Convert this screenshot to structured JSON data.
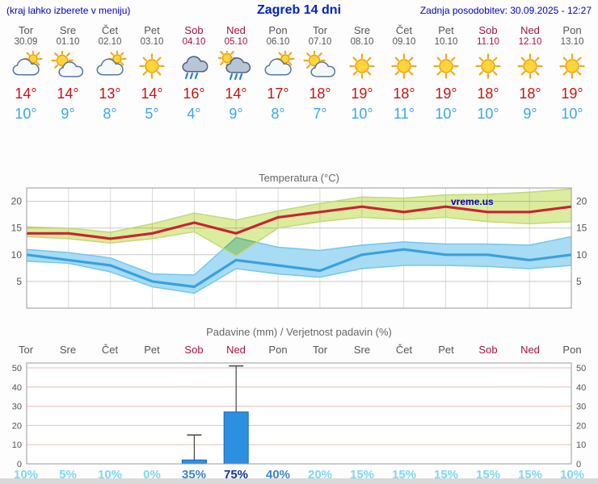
{
  "header": {
    "note": "(kraj lahko izberete v meniju)",
    "title": "Zagreb 14 dni",
    "updated": "Zadnja posodobitev: 30.09.2025 - 12:27"
  },
  "watermark": "vreme.us",
  "colors": {
    "link_blue": "#0000cc",
    "title_blue": "#0022cc",
    "watermark_blue": "#0000bb",
    "weekday": "#555555",
    "weekend": "#a8123e",
    "tmax": "#cc1111",
    "tmin": "#3aa5f0",
    "prob_low": "#7dd8f0",
    "prob_mid": "#3d85c8",
    "prob_high": "#10339e",
    "bar": "#2d8fe0",
    "bar_edge": "#1668b8"
  },
  "days": [
    {
      "name": "Tor",
      "date": "30.09",
      "weekend": false,
      "icon": "mostly-cloudy",
      "tmax": "14°",
      "tmin": "10°",
      "prob": "10%"
    },
    {
      "name": "Sre",
      "date": "01.10",
      "weekend": false,
      "icon": "partly-cloudy",
      "tmax": "14°",
      "tmin": "9°",
      "prob": "5%"
    },
    {
      "name": "Čet",
      "date": "02.10",
      "weekend": false,
      "icon": "mostly-cloudy",
      "tmax": "13°",
      "tmin": "8°",
      "prob": "10%"
    },
    {
      "name": "Pet",
      "date": "03.10",
      "weekend": false,
      "icon": "sunny",
      "tmax": "14°",
      "tmin": "5°",
      "prob": "0%"
    },
    {
      "name": "Sob",
      "date": "04.10",
      "weekend": true,
      "icon": "rain",
      "tmax": "16°",
      "tmin": "4°",
      "prob": "35%"
    },
    {
      "name": "Ned",
      "date": "05.10",
      "weekend": true,
      "icon": "rain-sun",
      "tmax": "14°",
      "tmin": "9°",
      "prob": "75%"
    },
    {
      "name": "Pon",
      "date": "06.10",
      "weekend": false,
      "icon": "mostly-cloudy",
      "tmax": "17°",
      "tmin": "8°",
      "prob": "40%"
    },
    {
      "name": "Tor",
      "date": "07.10",
      "weekend": false,
      "icon": "partly-cloudy",
      "tmax": "18°",
      "tmin": "7°",
      "prob": "20%"
    },
    {
      "name": "Sre",
      "date": "08.10",
      "weekend": false,
      "icon": "sunny",
      "tmax": "19°",
      "tmin": "10°",
      "prob": "15%"
    },
    {
      "name": "Čet",
      "date": "09.10",
      "weekend": false,
      "icon": "sunny",
      "tmax": "18°",
      "tmin": "11°",
      "prob": "15%"
    },
    {
      "name": "Pet",
      "date": "10.10",
      "weekend": false,
      "icon": "sunny",
      "tmax": "19°",
      "tmin": "10°",
      "prob": "15%"
    },
    {
      "name": "Sob",
      "date": "11.10",
      "weekend": true,
      "icon": "sunny",
      "tmax": "18°",
      "tmin": "10°",
      "prob": "15%"
    },
    {
      "name": "Ned",
      "date": "12.10",
      "weekend": true,
      "icon": "sunny",
      "tmax": "18°",
      "tmin": "9°",
      "prob": "15%"
    },
    {
      "name": "Pon",
      "date": "13.10",
      "weekend": false,
      "icon": "sunny",
      "tmax": "19°",
      "tmin": "10°",
      "prob": "10%"
    }
  ],
  "chart_data": [
    {
      "type": "line",
      "title": "Temperatura (°C)",
      "categories": [
        "Tor",
        "Sre",
        "Čet",
        "Pet",
        "Sob",
        "Ned",
        "Pon",
        "Tor",
        "Sre",
        "Čet",
        "Pet",
        "Sob",
        "Ned",
        "Pon"
      ],
      "ylim": [
        0,
        22.5
      ],
      "yticks": [
        5,
        10,
        15,
        20
      ],
      "grid": true,
      "series": [
        {
          "name": "max-temperature",
          "color": "#cb2233",
          "values": [
            14,
            14,
            13,
            14,
            16,
            14,
            17,
            18,
            19,
            18,
            19,
            18,
            18,
            19
          ]
        },
        {
          "name": "min-temperature",
          "color": "#3aa0e0",
          "values": [
            10,
            9,
            8,
            5,
            4,
            9,
            8,
            7,
            10,
            11,
            10,
            10,
            9,
            10
          ]
        }
      ],
      "bands": [
        {
          "name": "min-range",
          "fill": "#a8dcf4",
          "edge": "#74c6ec",
          "upper": [
            11.0,
            10.4,
            9.4,
            6.4,
            6.2,
            13.2,
            11.4,
            10.8,
            11.8,
            12.4,
            12.0,
            12.0,
            11.8,
            13.4
          ],
          "lower": [
            8.8,
            8.4,
            6.8,
            4.0,
            2.8,
            7.4,
            6.4,
            5.8,
            7.4,
            8.0,
            8.0,
            7.8,
            7.4,
            8.0
          ]
        },
        {
          "name": "max-range",
          "fill": "#dcec9e",
          "edge": "#c2d87a",
          "upper": [
            15.2,
            15.0,
            14.2,
            15.8,
            17.8,
            16.5,
            18.2,
            19.6,
            20.8,
            20.6,
            21.2,
            21.3,
            21.7,
            22.3
          ],
          "lower": [
            13.4,
            13.0,
            12.2,
            13.0,
            14.3,
            9.8,
            15.0,
            16.2,
            17.0,
            16.6,
            17.0,
            16.2,
            15.8,
            16.2
          ]
        }
      ]
    },
    {
      "type": "bar",
      "title": "Padavine (mm) / Verjetnost padavin (%)",
      "categories": [
        "Tor",
        "Sre",
        "Čet",
        "Pet",
        "Sob",
        "Ned",
        "Pon",
        "Tor",
        "Sre",
        "Čet",
        "Pet",
        "Sob",
        "Ned",
        "Pon"
      ],
      "ylim": [
        0,
        52.5
      ],
      "yticks": [
        0,
        10,
        20,
        30,
        40,
        50
      ],
      "values": [
        0,
        0,
        0,
        0,
        2,
        27,
        0,
        0,
        0,
        0,
        0,
        0,
        0,
        0
      ],
      "whisker_max": [
        null,
        null,
        null,
        null,
        15,
        51,
        null,
        null,
        null,
        null,
        null,
        null,
        null,
        null
      ],
      "probabilities": [
        10,
        5,
        10,
        0,
        35,
        75,
        40,
        20,
        15,
        15,
        15,
        15,
        15,
        10
      ]
    }
  ]
}
